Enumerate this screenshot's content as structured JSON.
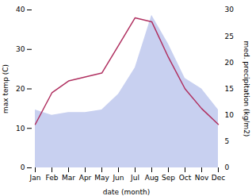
{
  "chart_data": {
    "type": "line",
    "xlabel": "date (month)",
    "ylabel": "max temp (C)",
    "y2label": "med. precipitation (kg/m2)",
    "categories": [
      "Jan",
      "Feb",
      "Mar",
      "Apr",
      "May",
      "Jun",
      "Jul",
      "Aug",
      "Sep",
      "Oct",
      "Nov",
      "Dec"
    ],
    "series": [
      {
        "type": "area",
        "axis": "y2",
        "color": "#c8d0f0",
        "values": [
          11,
          10,
          10.5,
          10.5,
          11,
          14,
          19,
          29,
          23.5,
          17,
          15,
          11
        ]
      },
      {
        "type": "line",
        "color": "#b03060",
        "values": [
          11,
          19,
          22,
          23,
          24,
          31,
          38,
          37,
          28,
          20,
          15,
          11
        ]
      }
    ],
    "ylim": [
      0,
      40
    ],
    "yticks": [
      0,
      10,
      20,
      30,
      40
    ],
    "y2lim": [
      0,
      30
    ],
    "y2ticks": [
      0,
      5,
      10,
      15,
      20,
      25,
      30
    ],
    "grid": false
  }
}
